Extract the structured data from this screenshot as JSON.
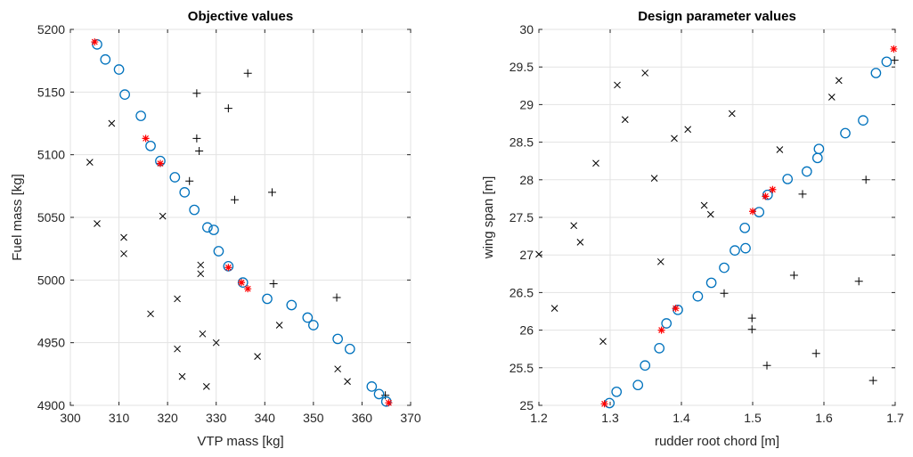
{
  "colors": {
    "circle": "#0072BD",
    "best": "#FF0000",
    "cross": "#000000",
    "plus": "#000000"
  },
  "chart_data": [
    {
      "type": "scatter",
      "title": "Objective values",
      "xlabel": "VTP mass [kg]",
      "ylabel": "Fuel mass [kg]",
      "xlim": [
        300,
        370
      ],
      "ylim": [
        4900,
        5200
      ],
      "xticks": [
        300,
        310,
        320,
        330,
        340,
        350,
        360,
        370
      ],
      "yticks": [
        4900,
        4950,
        5000,
        5050,
        5100,
        5150,
        5200
      ],
      "grid": true,
      "series": [
        {
          "marker": "circle",
          "points": [
            [
              305.5,
              5188
            ],
            [
              307.2,
              5176
            ],
            [
              310,
              5168
            ],
            [
              311.2,
              5148
            ],
            [
              314.5,
              5131
            ],
            [
              316.5,
              5107
            ],
            [
              318.5,
              5095
            ],
            [
              321.5,
              5082
            ],
            [
              323.5,
              5070
            ],
            [
              325.5,
              5056
            ],
            [
              328.2,
              5042
            ],
            [
              329.5,
              5040
            ],
            [
              330.5,
              5023
            ],
            [
              332.5,
              5011
            ],
            [
              335.5,
              4998
            ],
            [
              340.5,
              4985
            ],
            [
              345.5,
              4980
            ],
            [
              348.8,
              4970
            ],
            [
              350,
              4964
            ],
            [
              355,
              4953
            ],
            [
              357.5,
              4945
            ],
            [
              362,
              4915
            ],
            [
              363.5,
              4909
            ],
            [
              365,
              4903
            ]
          ]
        },
        {
          "marker": "star",
          "points": [
            [
              305,
              5190
            ],
            [
              315.5,
              5113
            ],
            [
              318.5,
              5093
            ],
            [
              332.5,
              5010
            ],
            [
              335.2,
              4998
            ],
            [
              336.5,
              4993
            ],
            [
              365.5,
              4902
            ]
          ]
        },
        {
          "marker": "cross",
          "points": [
            [
              304,
              5094
            ],
            [
              305.5,
              5045
            ],
            [
              308.5,
              5125
            ],
            [
              311,
              5034
            ],
            [
              311,
              5021
            ],
            [
              316.5,
              4973
            ],
            [
              319,
              5051
            ],
            [
              322,
              4985
            ],
            [
              322,
              4945
            ],
            [
              323,
              4923
            ],
            [
              326.8,
              5012
            ],
            [
              326.8,
              5005
            ],
            [
              327.2,
              4957
            ],
            [
              328,
              4915
            ],
            [
              330,
              4950
            ],
            [
              338.5,
              4939
            ],
            [
              343,
              4964
            ],
            [
              355,
              4929
            ],
            [
              357,
              4919
            ]
          ]
        },
        {
          "marker": "plus",
          "points": [
            [
              324.5,
              5079
            ],
            [
              326,
              5149
            ],
            [
              326,
              5113
            ],
            [
              326.5,
              5103
            ],
            [
              332.5,
              5137
            ],
            [
              333.8,
              5064
            ],
            [
              336.5,
              5165
            ],
            [
              341.5,
              5070
            ],
            [
              341.8,
              4997
            ],
            [
              354.8,
              4986
            ],
            [
              364.8,
              4908
            ]
          ]
        }
      ]
    },
    {
      "type": "scatter",
      "title": "Design parameter values",
      "xlabel": "rudder root chord [m]",
      "ylabel": "wing span [m]",
      "xlim": [
        1.2,
        1.7
      ],
      "ylim": [
        25,
        30
      ],
      "xticks": [
        "1.2",
        "1.3",
        "1.4",
        "1.5",
        "1.6",
        "1.7"
      ],
      "yticks": [
        "25",
        "25.5",
        "26",
        "26.5",
        "27",
        "27.5",
        "28",
        "28.5",
        "29",
        "29.5",
        "30"
      ],
      "grid": true,
      "series": [
        {
          "marker": "circle",
          "points": [
            [
              1.299,
              25.03
            ],
            [
              1.309,
              25.18
            ],
            [
              1.339,
              25.27
            ],
            [
              1.349,
              25.53
            ],
            [
              1.369,
              25.76
            ],
            [
              1.379,
              26.09
            ],
            [
              1.395,
              26.27
            ],
            [
              1.423,
              26.45
            ],
            [
              1.442,
              26.63
            ],
            [
              1.46,
              26.83
            ],
            [
              1.475,
              27.06
            ],
            [
              1.49,
              27.09
            ],
            [
              1.489,
              27.36
            ],
            [
              1.509,
              27.57
            ],
            [
              1.521,
              27.8
            ],
            [
              1.549,
              28.01
            ],
            [
              1.576,
              28.11
            ],
            [
              1.591,
              28.29
            ],
            [
              1.593,
              28.41
            ],
            [
              1.63,
              28.62
            ],
            [
              1.655,
              28.79
            ],
            [
              1.673,
              29.42
            ],
            [
              1.688,
              29.57
            ]
          ]
        },
        {
          "marker": "star",
          "points": [
            [
              1.292,
              25.02
            ],
            [
              1.372,
              26.0
            ],
            [
              1.392,
              26.29
            ],
            [
              1.5,
              27.58
            ],
            [
              1.518,
              27.78
            ],
            [
              1.528,
              27.87
            ],
            [
              1.698,
              29.74
            ]
          ]
        },
        {
          "marker": "cross",
          "points": [
            [
              1.222,
              26.29
            ],
            [
              1.249,
              27.39
            ],
            [
              1.258,
              27.17
            ],
            [
              1.28,
              28.22
            ],
            [
              1.29,
              25.85
            ],
            [
              1.31,
              29.26
            ],
            [
              1.321,
              28.8
            ],
            [
              1.349,
              29.42
            ],
            [
              1.362,
              28.02
            ],
            [
              1.371,
              26.91
            ],
            [
              1.39,
              28.55
            ],
            [
              1.409,
              28.67
            ],
            [
              1.432,
              27.66
            ],
            [
              1.441,
              27.54
            ],
            [
              1.471,
              28.88
            ],
            [
              1.538,
              28.4
            ],
            [
              1.611,
              29.1
            ],
            [
              1.621,
              29.32
            ],
            [
              1.2,
              27.01
            ]
          ]
        },
        {
          "marker": "plus",
          "points": [
            [
              1.46,
              26.49
            ],
            [
              1.499,
              26.16
            ],
            [
              1.499,
              26.01
            ],
            [
              1.52,
              25.53
            ],
            [
              1.558,
              26.73
            ],
            [
              1.57,
              27.81
            ],
            [
              1.589,
              25.69
            ],
            [
              1.649,
              26.65
            ],
            [
              1.659,
              28.0
            ],
            [
              1.669,
              25.33
            ],
            [
              1.699,
              29.59
            ]
          ]
        }
      ]
    }
  ]
}
